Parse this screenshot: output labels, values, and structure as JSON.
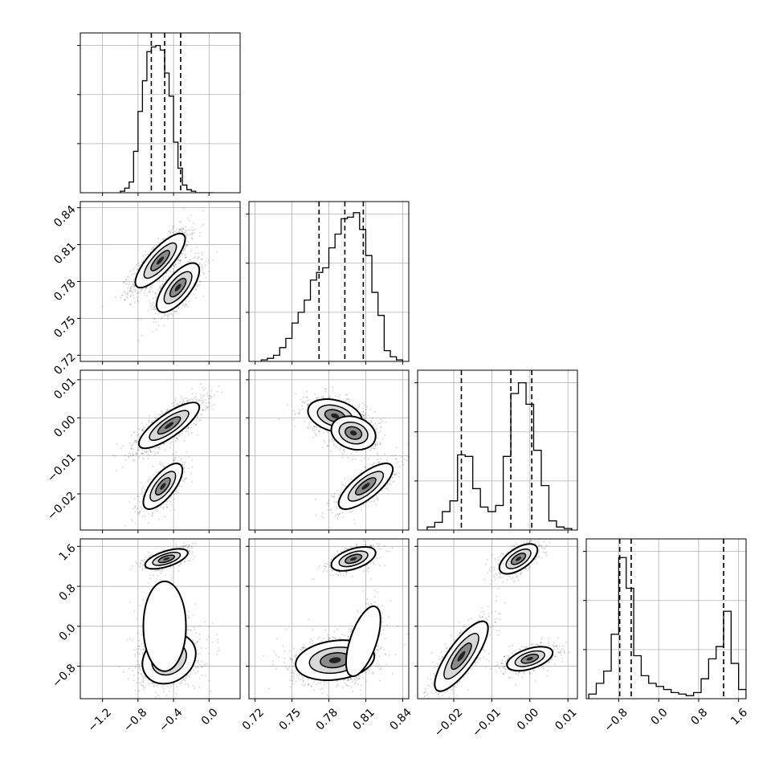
{
  "chart_data": {
    "type": "scatter",
    "layout": "corner-plot",
    "grid": true,
    "quantile_lines": "dashed",
    "contour_color": "#000000",
    "point_color": "#000000",
    "params": [
      {
        "range": [
          -1.45,
          0.35
        ],
        "ticks": [
          -1.2,
          -0.8,
          -0.4,
          0.0
        ],
        "tick_labels": [
          "−1.2",
          "−0.8",
          "−0.4",
          "0.0"
        ],
        "quantiles": [
          -0.65,
          -0.5,
          -0.32
        ],
        "hist_bins": [
          -1.0,
          -0.95,
          -0.9,
          -0.85,
          -0.8,
          -0.75,
          -0.7,
          -0.65,
          -0.6,
          -0.55,
          -0.5,
          -0.45,
          -0.4,
          -0.35,
          -0.3,
          -0.25,
          -0.2,
          -0.15,
          -0.1,
          -0.05,
          0.0,
          0.05
        ],
        "hist_counts": [
          0.01,
          0.03,
          0.07,
          0.27,
          0.53,
          0.73,
          0.92,
          0.95,
          0.96,
          0.93,
          0.78,
          0.63,
          0.33,
          0.16,
          0.05,
          0.02,
          0.01,
          0,
          0,
          0,
          0
        ]
      },
      {
        "range": [
          0.715,
          0.845
        ],
        "ticks": [
          0.72,
          0.75,
          0.78,
          0.81,
          0.84
        ],
        "tick_labels": [
          "0.72",
          "0.75",
          "0.78",
          "0.81",
          "0.84"
        ],
        "quantiles": [
          0.772,
          0.793,
          0.808
        ],
        "hist_bins": [
          0.725,
          0.73,
          0.735,
          0.74,
          0.745,
          0.75,
          0.755,
          0.76,
          0.765,
          0.77,
          0.775,
          0.78,
          0.785,
          0.79,
          0.795,
          0.8,
          0.805,
          0.81,
          0.815,
          0.82,
          0.825,
          0.83,
          0.835,
          0.84
        ],
        "hist_counts": [
          0.01,
          0.02,
          0.04,
          0.09,
          0.15,
          0.25,
          0.32,
          0.4,
          0.53,
          0.58,
          0.61,
          0.74,
          0.83,
          0.93,
          0.94,
          0.97,
          0.86,
          0.69,
          0.45,
          0.3,
          0.07,
          0.03,
          0.01
        ]
      },
      {
        "range": [
          -0.0295,
          0.0125
        ],
        "ticks": [
          -0.02,
          -0.01,
          0.0,
          0.01
        ],
        "tick_labels": [
          "−0.02",
          "−0.01",
          "0.00",
          "0.01"
        ],
        "quantiles": [
          -0.018,
          -0.005,
          0.0005
        ],
        "hist_bins": [
          -0.027,
          -0.025,
          -0.023,
          -0.021,
          -0.019,
          -0.017,
          -0.015,
          -0.013,
          -0.011,
          -0.009,
          -0.007,
          -0.005,
          -0.003,
          -0.001,
          0.001,
          0.003,
          0.005,
          0.007,
          0.009,
          0.011
        ],
        "hist_counts": [
          0.02,
          0.05,
          0.12,
          0.19,
          0.49,
          0.48,
          0.27,
          0.15,
          0.12,
          0.16,
          0.48,
          0.89,
          0.96,
          0.82,
          0.52,
          0.29,
          0.06,
          0.02,
          0.01
        ]
      },
      {
        "range": [
          -1.45,
          1.75
        ],
        "ticks": [
          -0.8,
          0.0,
          0.8,
          1.6
        ],
        "tick_labels": [
          "−0.8",
          "0.0",
          "0.8",
          "1.6"
        ],
        "quantiles": [
          -0.78,
          -0.55,
          1.3
        ],
        "hist_bins": [
          -1.4,
          -1.25,
          -1.1,
          -0.95,
          -0.8,
          -0.65,
          -0.5,
          -0.35,
          -0.2,
          -0.05,
          0.1,
          0.25,
          0.4,
          0.55,
          0.7,
          0.85,
          1.0,
          1.15,
          1.3,
          1.45,
          1.6,
          1.75
        ],
        "hist_counts": [
          0.03,
          0.1,
          0.18,
          0.42,
          0.92,
          0.72,
          0.28,
          0.15,
          0.1,
          0.08,
          0.06,
          0.04,
          0.03,
          0.02,
          0.04,
          0.13,
          0.26,
          0.34,
          0.57,
          0.23,
          0.06
        ]
      }
    ],
    "pairs": [
      {
        "row": 1,
        "col": 0,
        "clusters": [
          {
            "cx": -0.55,
            "cy": 0.797,
            "sx": 0.14,
            "sy": 0.011,
            "rho": 0.8,
            "w": 0.65
          },
          {
            "cx": -0.35,
            "cy": 0.775,
            "sx": 0.12,
            "sy": 0.01,
            "rho": 0.7,
            "w": 0.35
          }
        ]
      },
      {
        "row": 2,
        "col": 0,
        "clusters": [
          {
            "cx": -0.45,
            "cy": -0.002,
            "sx": 0.17,
            "sy": 0.003,
            "rho": 0.8,
            "w": 0.68
          },
          {
            "cx": -0.52,
            "cy": -0.018,
            "sx": 0.11,
            "sy": 0.003,
            "rho": 0.7,
            "w": 0.32
          }
        ]
      },
      {
        "row": 2,
        "col": 1,
        "clusters": [
          {
            "cx": 0.785,
            "cy": 0.0005,
            "sx": 0.011,
            "sy": 0.0022,
            "rho": -0.3,
            "w": 0.4
          },
          {
            "cx": 0.8,
            "cy": -0.004,
            "sx": 0.009,
            "sy": 0.0022,
            "rho": -0.2,
            "w": 0.3
          },
          {
            "cx": 0.81,
            "cy": -0.018,
            "sx": 0.011,
            "sy": 0.003,
            "rho": 0.75,
            "w": 0.3
          }
        ]
      },
      {
        "row": 3,
        "col": 0,
        "clusters": [
          {
            "cx": -0.48,
            "cy": 1.35,
            "sx": 0.12,
            "sy": 0.1,
            "rho": 0.6,
            "w": 0.3
          },
          {
            "cx": -0.45,
            "cy": -0.65,
            "sx": 0.15,
            "sy": 0.25,
            "rho": 0.2,
            "w": 0.6
          },
          {
            "cx": -0.5,
            "cy": 0.0,
            "sx": 0.12,
            "sy": 0.45,
            "rho": 0.0,
            "w": 0.1
          }
        ]
      },
      {
        "row": 3,
        "col": 1,
        "clusters": [
          {
            "cx": 0.8,
            "cy": 1.35,
            "sx": 0.009,
            "sy": 0.12,
            "rho": 0.5,
            "w": 0.3
          },
          {
            "cx": 0.785,
            "cy": -0.68,
            "sx": 0.016,
            "sy": 0.2,
            "rho": 0.2,
            "w": 0.55
          },
          {
            "cx": 0.808,
            "cy": -0.3,
            "sx": 0.007,
            "sy": 0.35,
            "rho": 0.6,
            "w": 0.15
          }
        ]
      },
      {
        "row": 3,
        "col": 2,
        "clusters": [
          {
            "cx": -0.003,
            "cy": 1.35,
            "sx": 0.0025,
            "sy": 0.15,
            "rho": 0.6,
            "w": 0.3
          },
          {
            "cx": 0.0,
            "cy": -0.65,
            "sx": 0.003,
            "sy": 0.12,
            "rho": 0.5,
            "w": 0.35
          },
          {
            "cx": -0.018,
            "cy": -0.6,
            "sx": 0.0035,
            "sy": 0.35,
            "rho": 0.8,
            "w": 0.35
          }
        ]
      }
    ]
  }
}
